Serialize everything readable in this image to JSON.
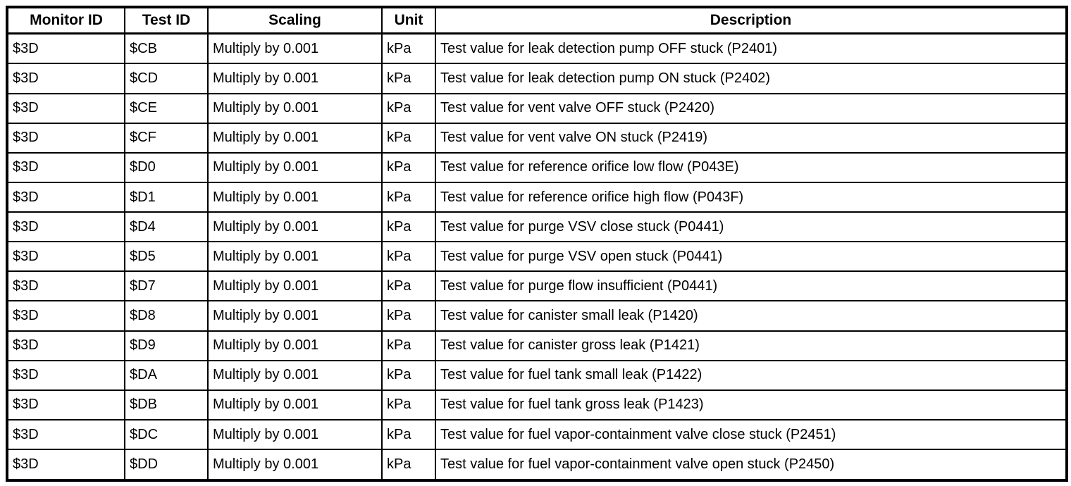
{
  "table": {
    "columns": [
      {
        "key": "monitor_id",
        "label": "Monitor ID"
      },
      {
        "key": "test_id",
        "label": "Test ID"
      },
      {
        "key": "scaling",
        "label": "Scaling"
      },
      {
        "key": "unit",
        "label": "Unit"
      },
      {
        "key": "description",
        "label": "Description"
      }
    ],
    "rows": [
      {
        "monitor_id": "$3D",
        "test_id": "$CB",
        "scaling": "Multiply by 0.001",
        "unit": "kPa",
        "description": "Test value for leak detection pump OFF stuck (P2401)"
      },
      {
        "monitor_id": "$3D",
        "test_id": "$CD",
        "scaling": "Multiply by 0.001",
        "unit": "kPa",
        "description": "Test value for leak detection pump ON stuck (P2402)"
      },
      {
        "monitor_id": "$3D",
        "test_id": "$CE",
        "scaling": "Multiply by 0.001",
        "unit": "kPa",
        "description": "Test value for vent valve OFF stuck (P2420)"
      },
      {
        "monitor_id": "$3D",
        "test_id": "$CF",
        "scaling": "Multiply by 0.001",
        "unit": "kPa",
        "description": "Test value for vent valve ON stuck (P2419)"
      },
      {
        "monitor_id": "$3D",
        "test_id": "$D0",
        "scaling": "Multiply by 0.001",
        "unit": "kPa",
        "description": "Test value for reference orifice low flow (P043E)"
      },
      {
        "monitor_id": "$3D",
        "test_id": "$D1",
        "scaling": "Multiply by 0.001",
        "unit": "kPa",
        "description": "Test value for reference orifice high flow (P043F)"
      },
      {
        "monitor_id": "$3D",
        "test_id": "$D4",
        "scaling": "Multiply by 0.001",
        "unit": "kPa",
        "description": "Test value for purge VSV close stuck (P0441)"
      },
      {
        "monitor_id": "$3D",
        "test_id": "$D5",
        "scaling": "Multiply by 0.001",
        "unit": "kPa",
        "description": "Test value for purge VSV open stuck (P0441)"
      },
      {
        "monitor_id": "$3D",
        "test_id": "$D7",
        "scaling": "Multiply by 0.001",
        "unit": "kPa",
        "description": "Test value for purge flow insufficient (P0441)"
      },
      {
        "monitor_id": "$3D",
        "test_id": "$D8",
        "scaling": "Multiply by 0.001",
        "unit": "kPa",
        "description": "Test value for canister small leak (P1420)"
      },
      {
        "monitor_id": "$3D",
        "test_id": "$D9",
        "scaling": "Multiply by 0.001",
        "unit": "kPa",
        "description": "Test value for canister gross leak (P1421)"
      },
      {
        "monitor_id": "$3D",
        "test_id": "$DA",
        "scaling": "Multiply by 0.001",
        "unit": "kPa",
        "description": "Test value for fuel tank small leak (P1422)"
      },
      {
        "monitor_id": "$3D",
        "test_id": "$DB",
        "scaling": "Multiply by 0.001",
        "unit": "kPa",
        "description": "Test value for fuel tank gross leak (P1423)"
      },
      {
        "monitor_id": "$3D",
        "test_id": "$DC",
        "scaling": "Multiply by 0.001",
        "unit": "kPa",
        "description": "Test value for fuel vapor-containment valve close stuck (P2451)"
      },
      {
        "monitor_id": "$3D",
        "test_id": "$DD",
        "scaling": "Multiply by 0.001",
        "unit": "kPa",
        "description": "Test value for fuel vapor-containment valve open stuck (P2450)"
      }
    ]
  }
}
